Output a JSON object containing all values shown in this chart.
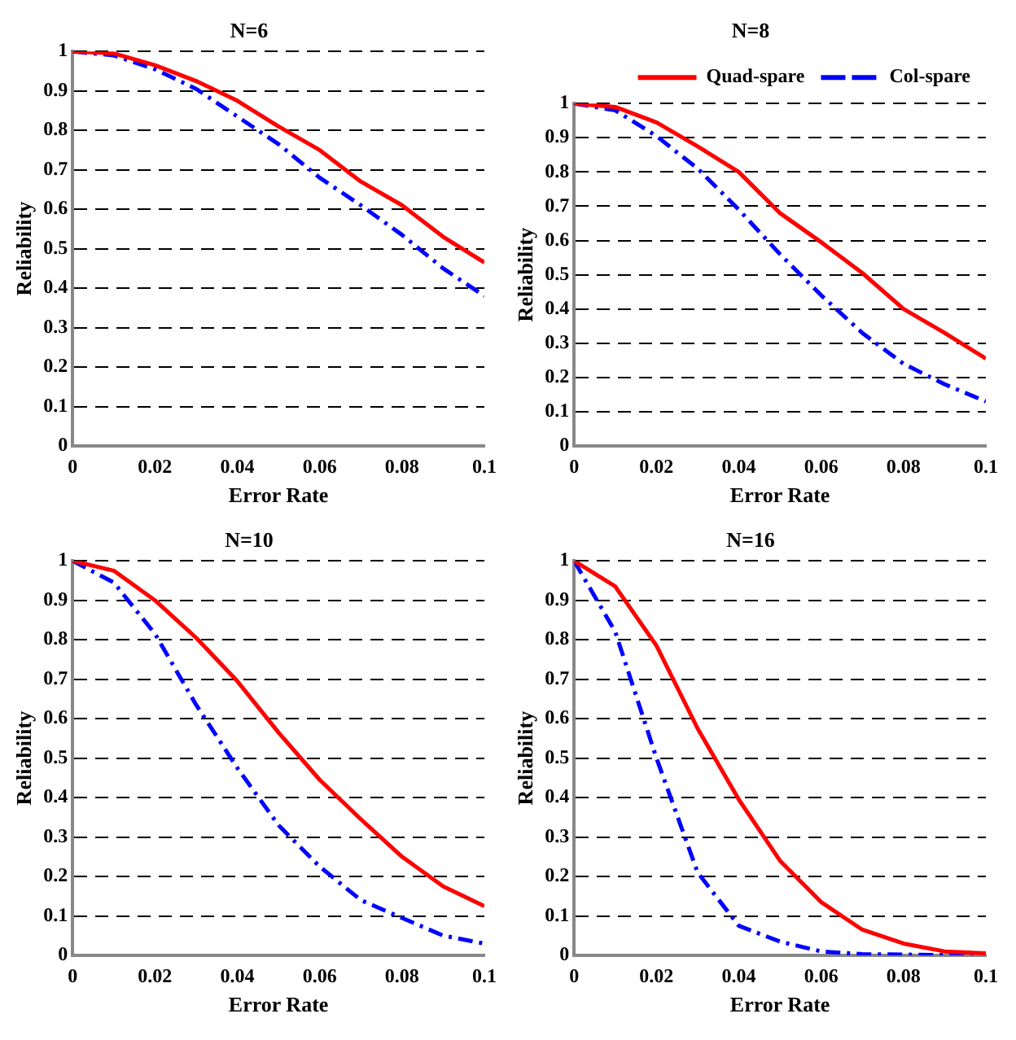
{
  "chart_data": [
    {
      "type": "line",
      "title": "N=6",
      "xlabel": "Error Rate",
      "ylabel": "Reliability",
      "x": [
        0,
        0.01,
        0.02,
        0.03,
        0.04,
        0.05,
        0.06,
        0.07,
        0.08,
        0.09,
        0.1
      ],
      "xlim": [
        0,
        0.1
      ],
      "xticks": [
        0,
        0.02,
        0.04,
        0.06,
        0.08,
        0.1
      ],
      "ylim": [
        0,
        1
      ],
      "yticks": [
        0,
        0.1,
        0.2,
        0.3,
        0.4,
        0.5,
        0.6,
        0.7,
        0.8,
        0.9,
        1
      ],
      "grid": "y",
      "legend": false,
      "marker": "none",
      "series": [
        {
          "color": "#ff0000",
          "line_style": "solid",
          "values": [
            1,
            0.995,
            0.965,
            0.925,
            0.875,
            0.81,
            0.75,
            0.67,
            0.61,
            0.53,
            0.465
          ]
        },
        {
          "color": "#0000ff",
          "line_style": "dashed",
          "values": [
            1,
            0.99,
            0.955,
            0.905,
            0.835,
            0.765,
            0.68,
            0.61,
            0.535,
            0.45,
            0.38
          ]
        }
      ]
    },
    {
      "type": "line",
      "title": "N=8",
      "xlabel": "Error Rate",
      "ylabel": "Reliability",
      "x": [
        0,
        0.01,
        0.02,
        0.03,
        0.04,
        0.05,
        0.06,
        0.07,
        0.08,
        0.09,
        0.1
      ],
      "xlim": [
        0,
        0.1
      ],
      "xticks": [
        0,
        0.02,
        0.04,
        0.06,
        0.08,
        0.1
      ],
      "ylim": [
        0,
        1
      ],
      "yticks": [
        0,
        0.1,
        0.2,
        0.3,
        0.4,
        0.5,
        0.6,
        0.7,
        0.8,
        0.9,
        1
      ],
      "grid": "y",
      "legend": "top right",
      "marker": "none",
      "series": [
        {
          "name": "Quad-spare",
          "color": "#ff0000",
          "line_style": "solid",
          "values": [
            1,
            0.99,
            0.945,
            0.875,
            0.8,
            0.68,
            0.595,
            0.505,
            0.4,
            0.33,
            0.255
          ]
        },
        {
          "name": "Col-spare",
          "color": "#0000ff",
          "line_style": "dashed",
          "values": [
            1,
            0.98,
            0.905,
            0.81,
            0.69,
            0.56,
            0.44,
            0.33,
            0.24,
            0.18,
            0.13
          ]
        }
      ]
    },
    {
      "type": "line",
      "title": "N=10",
      "xlabel": "Error Rate",
      "ylabel": "Reliability",
      "x": [
        0,
        0.01,
        0.02,
        0.03,
        0.04,
        0.05,
        0.06,
        0.07,
        0.08,
        0.09,
        0.1
      ],
      "xlim": [
        0,
        0.1
      ],
      "xticks": [
        0,
        0.02,
        0.04,
        0.06,
        0.08,
        0.1
      ],
      "ylim": [
        0,
        1
      ],
      "yticks": [
        0,
        0.1,
        0.2,
        0.3,
        0.4,
        0.5,
        0.6,
        0.7,
        0.8,
        0.9,
        1
      ],
      "grid": "y",
      "legend": false,
      "marker": "none",
      "series": [
        {
          "color": "#ff0000",
          "line_style": "solid",
          "values": [
            1,
            0.975,
            0.9,
            0.805,
            0.695,
            0.565,
            0.445,
            0.345,
            0.25,
            0.175,
            0.125
          ]
        },
        {
          "color": "#0000ff",
          "line_style": "dashed",
          "values": [
            1,
            0.945,
            0.815,
            0.635,
            0.475,
            0.33,
            0.225,
            0.14,
            0.095,
            0.05,
            0.03
          ]
        }
      ]
    },
    {
      "type": "line",
      "title": "N=16",
      "xlabel": "Error Rate",
      "ylabel": "Reliability",
      "x": [
        0,
        0.01,
        0.02,
        0.03,
        0.04,
        0.05,
        0.06,
        0.07,
        0.08,
        0.09,
        0.1
      ],
      "xlim": [
        0,
        0.1
      ],
      "xticks": [
        0,
        0.02,
        0.04,
        0.06,
        0.08,
        0.1
      ],
      "ylim": [
        0,
        1
      ],
      "yticks": [
        0,
        0.1,
        0.2,
        0.3,
        0.4,
        0.5,
        0.6,
        0.7,
        0.8,
        0.9,
        1
      ],
      "grid": "y",
      "legend": false,
      "marker": "none",
      "series": [
        {
          "color": "#ff0000",
          "line_style": "solid",
          "values": [
            1,
            0.935,
            0.785,
            0.575,
            0.395,
            0.24,
            0.135,
            0.065,
            0.03,
            0.01,
            0.005
          ]
        },
        {
          "color": "#0000ff",
          "line_style": "dashed",
          "values": [
            1,
            0.82,
            0.5,
            0.21,
            0.075,
            0.035,
            0.01,
            0.003,
            0.002,
            0.001,
            0.001
          ]
        }
      ]
    }
  ]
}
